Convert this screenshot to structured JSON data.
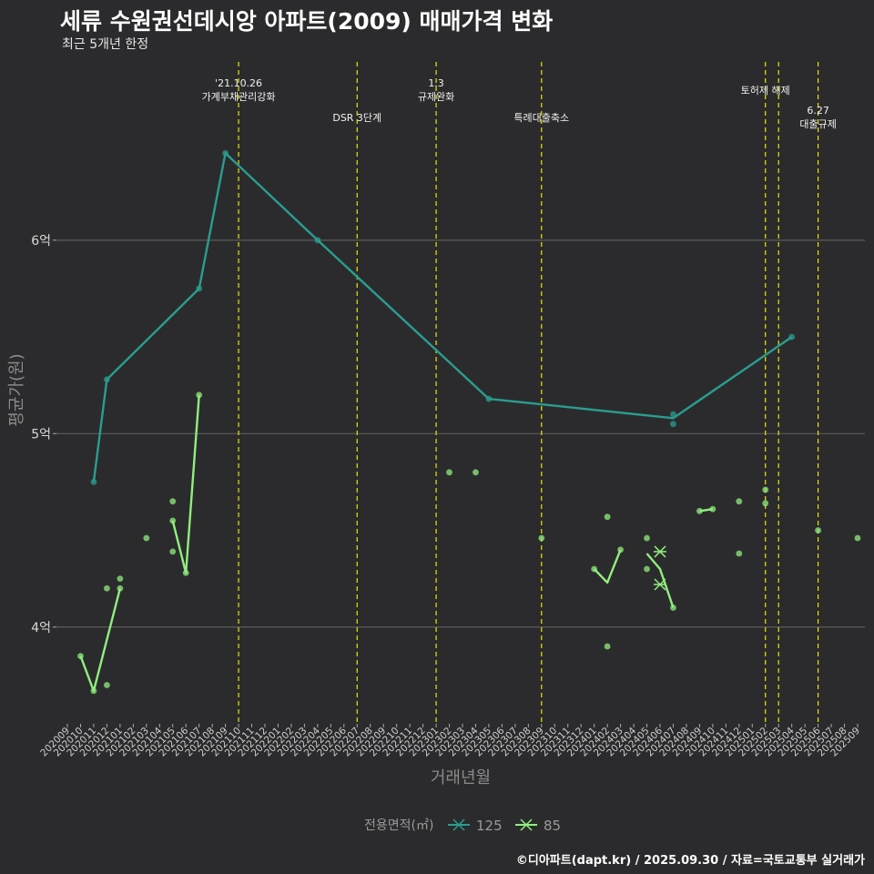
{
  "title": "세류 수원권선데시앙 아파트(2009) 매매가격 변화",
  "subtitle": "최근 5개년 한정",
  "caption": "©디아파트(dapt.kr) / 2025.09.30 / 자료=국토교통부 실거래가",
  "chart_data": {
    "type": "line",
    "xlabel": "거래년월",
    "ylabel": "평균가(원)",
    "ylim": [
      3.5,
      6.95
    ],
    "yticks": [
      {
        "value": 4,
        "label": "4억"
      },
      {
        "value": 5,
        "label": "5억"
      },
      {
        "value": 6,
        "label": "6억"
      }
    ],
    "x_categories": [
      "202009",
      "202010",
      "202011",
      "202012",
      "202101",
      "202102",
      "202103",
      "202104",
      "202105",
      "202106",
      "202107",
      "202108",
      "202109",
      "202110",
      "202111",
      "202112",
      "202201",
      "202202",
      "202203",
      "202204",
      "202205",
      "202206",
      "202207",
      "202208",
      "202209",
      "202210",
      "202211",
      "202212",
      "202301",
      "202302",
      "202303",
      "202304",
      "202305",
      "202306",
      "202307",
      "202308",
      "202309",
      "202310",
      "202311",
      "202312",
      "202401",
      "202402",
      "202403",
      "202404",
      "202405",
      "202406",
      "202407",
      "202408",
      "202409",
      "202410",
      "202411",
      "202412",
      "202501",
      "202502",
      "202503",
      "202504",
      "202505",
      "202506",
      "202507",
      "202508",
      "202509"
    ],
    "legend": {
      "title": "전용면적(㎡)",
      "position": "bottom",
      "entries": [
        "125",
        "85"
      ]
    },
    "colors": {
      "125": "#2a9d8f",
      "85": "#90ee7e",
      "event_line": "#e8e800",
      "grid": "#5c5c5c"
    },
    "events": [
      {
        "x": "202110",
        "label_lines": [
          "'21.10.26",
          "가계부채관리강화"
        ],
        "tier": "top"
      },
      {
        "x": "202207",
        "label_lines": [
          "DSR 3단계"
        ],
        "tier": "mid"
      },
      {
        "x": "202301",
        "label_lines": [
          "1.3",
          "규제완화"
        ],
        "tier": "top"
      },
      {
        "x": "202309",
        "label_lines": [
          "특례대출축소"
        ],
        "tier": "mid"
      },
      {
        "x": "202502",
        "label_lines": [
          "토허제 해제"
        ],
        "tier": "upper"
      },
      {
        "x": "202503",
        "label_lines": [],
        "tier": "none"
      },
      {
        "x": "202506",
        "label_lines": [
          "6.27",
          "대출규제"
        ],
        "tier": "low"
      }
    ],
    "series": [
      {
        "name": "125",
        "line": [
          [
            "202011",
            4.75
          ],
          [
            "202012",
            5.28
          ],
          [
            "202107",
            5.75
          ],
          [
            "202109",
            6.45
          ],
          [
            "202204",
            6.0
          ],
          [
            "202305",
            5.18
          ],
          [
            "202407",
            5.08
          ],
          [
            "202504",
            5.5
          ]
        ],
        "points": [
          [
            "202011",
            4.75
          ],
          [
            "202012",
            5.28
          ],
          [
            "202107",
            5.75
          ],
          [
            "202109",
            6.45
          ],
          [
            "202204",
            6.0
          ],
          [
            "202305",
            5.18
          ],
          [
            "202407",
            5.1
          ],
          [
            "202407",
            5.05
          ],
          [
            "202504",
            5.5
          ]
        ],
        "crosses": []
      },
      {
        "name": "85",
        "segments": [
          [
            [
              "202010",
              3.85
            ],
            [
              "202011",
              3.67
            ],
            [
              "202101",
              4.2
            ]
          ],
          [
            [
              "202105",
              4.55
            ],
            [
              "202106",
              4.28
            ],
            [
              "202107",
              5.2
            ]
          ],
          [
            [
              "202401",
              4.3
            ],
            [
              "202402",
              4.23
            ],
            [
              "202403",
              4.4
            ]
          ],
          [
            [
              "202405",
              4.38
            ],
            [
              "202406",
              4.3
            ],
            [
              "202407",
              4.1
            ]
          ],
          [
            [
              "202409",
              4.6
            ],
            [
              "202410",
              4.61
            ]
          ]
        ],
        "points": [
          [
            "202010",
            3.85
          ],
          [
            "202011",
            3.67
          ],
          [
            "202012",
            4.2
          ],
          [
            "202012",
            3.7
          ],
          [
            "202101",
            4.2
          ],
          [
            "202101",
            4.25
          ],
          [
            "202103",
            4.46
          ],
          [
            "202105",
            4.65
          ],
          [
            "202105",
            4.55
          ],
          [
            "202105",
            4.39
          ],
          [
            "202106",
            4.28
          ],
          [
            "202107",
            5.2
          ],
          [
            "202302",
            4.8
          ],
          [
            "202304",
            4.8
          ],
          [
            "202309",
            4.46
          ],
          [
            "202401",
            4.3
          ],
          [
            "202402",
            4.57
          ],
          [
            "202402",
            3.9
          ],
          [
            "202403",
            4.4
          ],
          [
            "202405",
            4.46
          ],
          [
            "202405",
            4.3
          ],
          [
            "202407",
            4.1
          ],
          [
            "202409",
            4.6
          ],
          [
            "202410",
            4.61
          ],
          [
            "202412",
            4.65
          ],
          [
            "202412",
            4.38
          ],
          [
            "202502",
            4.71
          ],
          [
            "202502",
            4.64
          ],
          [
            "202506",
            4.5
          ],
          [
            "202509",
            4.46
          ]
        ],
        "crosses": [
          [
            "202406",
            4.39
          ],
          [
            "202406",
            4.22
          ]
        ]
      }
    ]
  }
}
